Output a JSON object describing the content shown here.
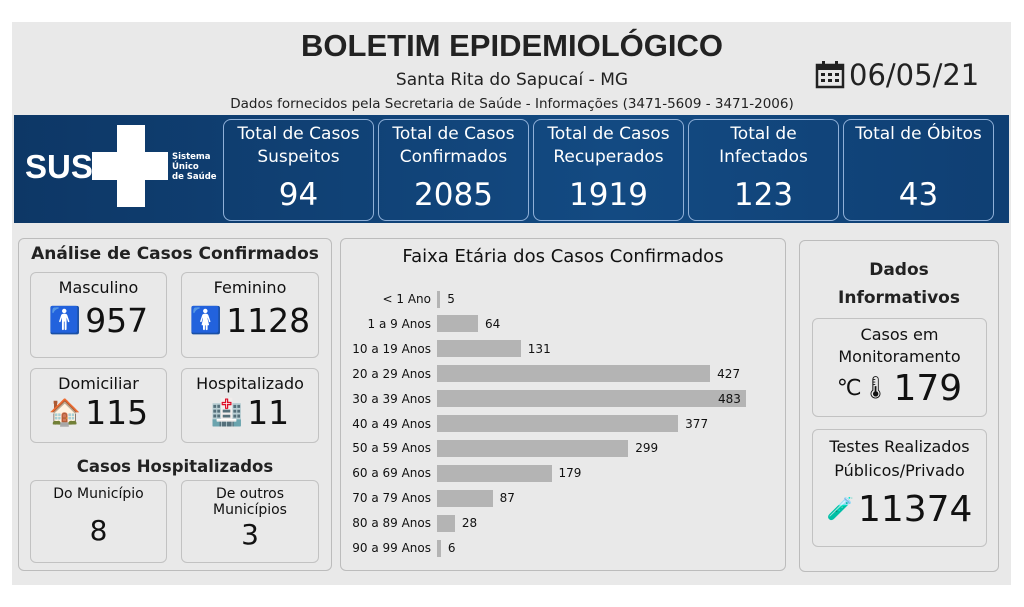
{
  "header": {
    "title": "BOLETIM EPIDEMIOLÓGICO",
    "subtitle": "Santa Rita do Sapucaí - MG",
    "source": "Dados fornecidos pela Secretaria de Saúde - Informações (3471-5609 - 3471-2006)",
    "date": "06/05/21",
    "date_icon": "calendar-icon"
  },
  "logo": {
    "text": "SUS",
    "sub": [
      "Sistema",
      "Único",
      "de Saúde"
    ]
  },
  "kpis": [
    {
      "label": "Total de Casos Suspeitos",
      "value": "94"
    },
    {
      "label": "Total de Casos Confirmados",
      "value": "2085"
    },
    {
      "label": "Total de Casos Recuperados",
      "value": "1919"
    },
    {
      "label": "Total de Infectados",
      "value": "123"
    },
    {
      "label": "Total de Óbitos",
      "value": "43"
    }
  ],
  "confirmed": {
    "title": "Análise de Casos Confirmados",
    "male": {
      "label": "Masculino",
      "value": "957"
    },
    "female": {
      "label": "Feminino",
      "value": "1128"
    },
    "home": {
      "label": "Domiciliar",
      "value": "115"
    },
    "hospital": {
      "label": "Hospitalizado",
      "value": "11"
    },
    "hosp_title": "Casos Hospitalizados",
    "local": {
      "label": "Do Município",
      "value": "8"
    },
    "other": {
      "label": "De outros Municípios",
      "value": "3"
    }
  },
  "chart_data": {
    "type": "bar",
    "orientation": "horizontal",
    "title": "Faixa Etária dos Casos Confirmados",
    "categories": [
      "< 1 Ano",
      "1 a 9 Anos",
      "10 a 19 Anos",
      "20 a 29 Anos",
      "30 a 39 Anos",
      "40 a 49 Anos",
      "50 a 59 Anos",
      "60 a 69 Anos",
      "70 a 79 Anos",
      "80 a 89 Anos",
      "90 a 99 Anos"
    ],
    "values": [
      5,
      64,
      131,
      427,
      483,
      377,
      299,
      179,
      87,
      28,
      6
    ],
    "bar_color": "#b4b4b4"
  },
  "info": {
    "title": "Dados Informativos",
    "monitoring": {
      "label": "Casos em Monitoramento",
      "value": "179"
    },
    "tests": {
      "label": "Testes Realizados Públicos/Privado",
      "value": "11374"
    }
  }
}
